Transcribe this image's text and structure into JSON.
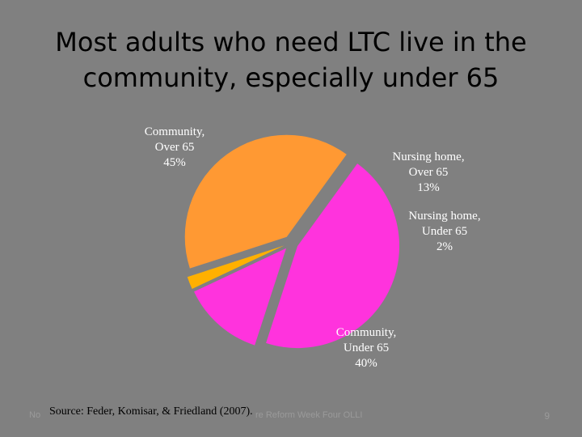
{
  "slide": {
    "title_line1": "Most adults who need LTC live in the",
    "title_line2": "community, especially under 65",
    "source": "Source:  Feder, Komisar, & Friedland (2007).",
    "footer_left": "No",
    "footer_center": "re Reform Week Four OLLI",
    "page_number": "9"
  },
  "chart_data": {
    "type": "pie",
    "slices": [
      {
        "label_lines": [
          "Community,",
          "Over 65",
          "45%"
        ],
        "value": 45,
        "color": "#ff33dd"
      },
      {
        "label_lines": [
          "Nursing home,",
          "Over 65",
          "13%"
        ],
        "value": 13,
        "color": "#ff33dd"
      },
      {
        "label_lines": [
          "Nursing home,",
          "Under 65",
          "2%"
        ],
        "value": 2,
        "color": "#ffb000"
      },
      {
        "label_lines": [
          "Community,",
          "Under 65",
          "40%"
        ],
        "value": 40,
        "color": "#ff9933"
      }
    ],
    "legend": "none"
  }
}
